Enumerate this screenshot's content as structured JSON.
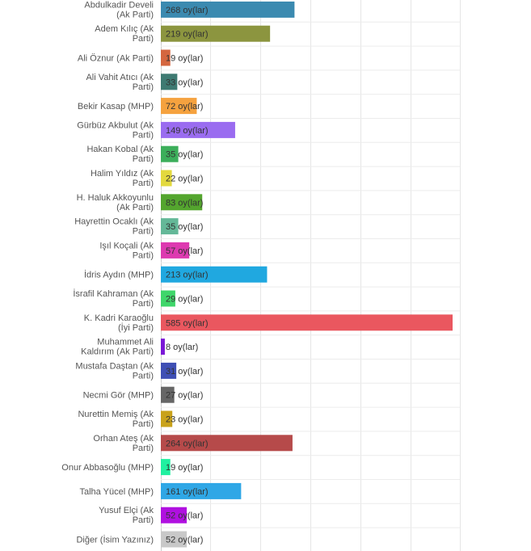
{
  "chart_data": {
    "type": "bar",
    "orientation": "horizontal",
    "value_suffix": " oy(lar)",
    "xlim": [
      0,
      600
    ],
    "grid": true,
    "categories": [
      [
        "Abdulkadir Develi",
        "(Ak Parti)"
      ],
      [
        "Adem Kılıç (Ak",
        "Parti)"
      ],
      [
        "Ali Öznur (Ak Parti)"
      ],
      [
        "Ali Vahit Atıcı (Ak",
        "Parti)"
      ],
      [
        "Bekir Kasap (MHP)"
      ],
      [
        "Gürbüz Akbulut (Ak",
        "Parti)"
      ],
      [
        "Hakan Kobal (Ak",
        "Parti)"
      ],
      [
        "Halim Yıldız (Ak",
        "Parti)"
      ],
      [
        "H. Haluk Akkoyunlu",
        "(Ak Parti)"
      ],
      [
        "Hayrettin Ocaklı (Ak",
        "Parti)"
      ],
      [
        "Işıl Koçali (Ak",
        "Parti)"
      ],
      [
        "İdris Aydın (MHP)"
      ],
      [
        "İsrafil Kahraman (Ak",
        "Parti)"
      ],
      [
        "K. Kadri Karaoğlu",
        "(İyi Parti)"
      ],
      [
        "Muhammet Ali",
        "Kaldırım (Ak Parti)"
      ],
      [
        "Mustafa Daştan (Ak",
        "Parti)"
      ],
      [
        "Necmi Gör (MHP)"
      ],
      [
        "Nurettin Memiş (Ak",
        "Parti)"
      ],
      [
        "Orhan Ateş (Ak",
        "Parti)"
      ],
      [
        "Onur Abbasoğlu (MHP)"
      ],
      [
        "Talha Yücel (MHP)"
      ],
      [
        "Yusuf Elçi (Ak",
        "Parti)"
      ],
      [
        "Diğer (İsim Yazınız)"
      ]
    ],
    "values": [
      268,
      219,
      19,
      33,
      72,
      149,
      35,
      22,
      83,
      35,
      57,
      213,
      29,
      585,
      8,
      31,
      27,
      23,
      264,
      19,
      161,
      52,
      52
    ],
    "colors": [
      "#3b8ab0",
      "#8c953f",
      "#d4663f",
      "#3e7a72",
      "#f5a23f",
      "#9a6cf0",
      "#3cae5a",
      "#e3d93e",
      "#54a52e",
      "#64b898",
      "#dd3ab0",
      "#20a8e0",
      "#3fd66a",
      "#ea575f",
      "#7a17d6",
      "#3f4fb4",
      "#666666",
      "#c9a21a",
      "#b64a4a",
      "#20f0a0",
      "#2fa7e6",
      "#b010e0",
      "#c8c8c8"
    ]
  }
}
